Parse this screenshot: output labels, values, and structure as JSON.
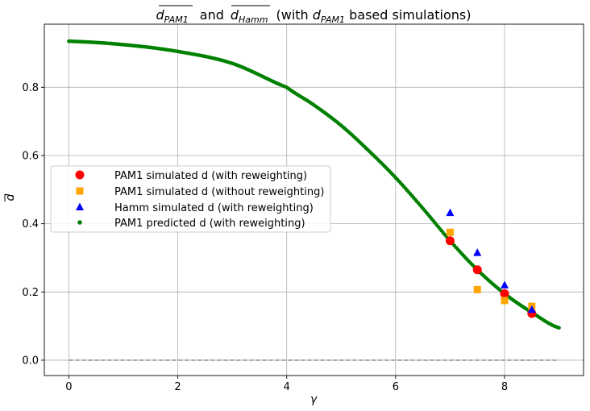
{
  "chart_data": {
    "type": "scatter",
    "title_parts": {
      "a": "d",
      "a_sub": "PAM1",
      "and": "and",
      "b": "d",
      "b_sub": "Hamm",
      "paren_open": "(with ",
      "c": "d",
      "c_sub": "PAM1",
      "paren_close": " based simulations)"
    },
    "xlabel": "γ",
    "ylabel": "d",
    "xlim": [
      -0.45,
      9.45
    ],
    "ylim": [
      -0.045,
      0.985
    ],
    "x_ticks": [
      0,
      2,
      4,
      6,
      8
    ],
    "y_ticks": [
      0.0,
      0.2,
      0.4,
      0.6,
      0.8
    ],
    "x_tick_labels": [
      "0",
      "2",
      "4",
      "6",
      "8"
    ],
    "y_tick_labels": [
      "0.0",
      "0.2",
      "0.4",
      "0.6",
      "0.8"
    ],
    "grid": true,
    "legend_position": "center-left",
    "reference_line": {
      "y": 0.0,
      "style": "dashed",
      "color": "#808080",
      "x_range": [
        0,
        9
      ]
    },
    "predicted_curve": {
      "x_range": [
        0,
        9
      ],
      "knots": [
        [
          0.0,
          0.935
        ],
        [
          1.0,
          0.925
        ],
        [
          2.0,
          0.905
        ],
        [
          3.0,
          0.87
        ],
        [
          4.0,
          0.8
        ],
        [
          4.5,
          0.748
        ],
        [
          5.0,
          0.688
        ],
        [
          5.5,
          0.615
        ],
        [
          6.0,
          0.535
        ],
        [
          6.5,
          0.445
        ],
        [
          7.0,
          0.35
        ],
        [
          7.5,
          0.265
        ],
        [
          8.0,
          0.195
        ],
        [
          8.5,
          0.14
        ],
        [
          9.0,
          0.095
        ]
      ]
    },
    "series": [
      {
        "name": "PAM1 simulated d (with reweighting)",
        "marker": "circle",
        "color": "#ff0000",
        "x": [
          7.0,
          7.5,
          8.0,
          8.5
        ],
        "y": [
          0.35,
          0.265,
          0.195,
          0.137
        ]
      },
      {
        "name": "PAM1 simulated d (without reweighting)",
        "marker": "square",
        "color": "#ffa500",
        "x": [
          7.0,
          7.5,
          8.0,
          8.5
        ],
        "y": [
          0.375,
          0.207,
          0.175,
          0.158
        ]
      },
      {
        "name": "Hamm simulated d (with reweighting)",
        "marker": "triangle",
        "color": "#0000ff",
        "x": [
          7.0,
          7.5,
          8.0,
          8.5
        ],
        "y": [
          0.432,
          0.315,
          0.22,
          0.148
        ]
      },
      {
        "name": "PAM1 predicted d (with reweighting)",
        "marker": "dot",
        "color": "#008000"
      }
    ]
  }
}
